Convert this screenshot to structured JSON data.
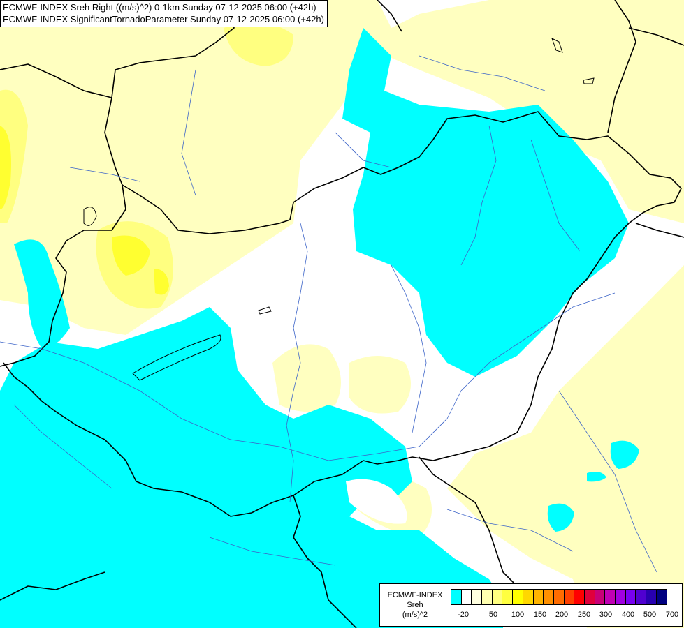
{
  "header": {
    "line1": "ECMWF-INDEX Sreh Right ((m/s)^2) 0-1km Sunday 07-12-2025 06:00 (+42h)",
    "line2": "ECMWF-INDEX SignificantTornadoParameter Sunday 07-12-2025 06:00 (+42h)"
  },
  "legend": {
    "title_line1": "ECMWF-INDEX",
    "title_line2": "Sreh",
    "title_line3": "(m/s)^2",
    "colors": [
      "#00ffff",
      "#ffffff",
      "#ffffe0",
      "#ffffb0",
      "#ffff80",
      "#ffff40",
      "#ffff00",
      "#ffd800",
      "#ffb400",
      "#ff9000",
      "#ff6c00",
      "#ff4000",
      "#ff0000",
      "#e0003c",
      "#c80078",
      "#c000b4",
      "#a000e0",
      "#7800f0",
      "#5000d0",
      "#2800b0",
      "#000080"
    ],
    "ticks": [
      "-20",
      "50",
      "100",
      "150",
      "200",
      "250",
      "300",
      "400",
      "500",
      "700"
    ]
  },
  "map": {
    "fill_colors": {
      "negative": "#00ffff",
      "low": "#ffffc0",
      "mid": "#ffff80",
      "high": "#ffff30"
    }
  }
}
